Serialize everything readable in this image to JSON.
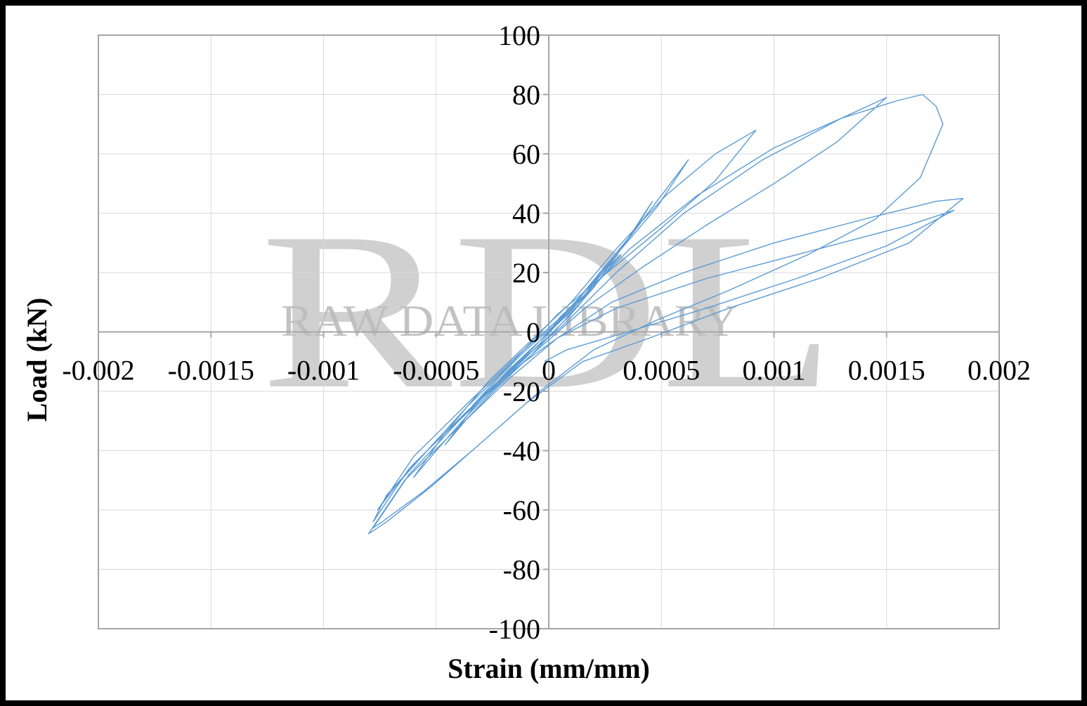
{
  "watermark": {
    "letters": "RDL",
    "text": "RAW DATA LIBRARY"
  },
  "chart_data": {
    "type": "line",
    "title": "",
    "xlabel": "Strain (mm/mm)",
    "ylabel": "Load (kN)",
    "xlim": [
      -0.002,
      0.002
    ],
    "ylim": [
      -100,
      100
    ],
    "xticks": [
      -0.002,
      -0.0015,
      -0.001,
      -0.0005,
      0,
      0.0005,
      0.001,
      0.0015,
      0.002
    ],
    "xtick_labels": [
      "-0.002",
      "-0.0015",
      "-0.001",
      "-0.0005",
      "0",
      "0.0005",
      "0.001",
      "0.0015",
      "0.002"
    ],
    "yticks": [
      -100,
      -80,
      -60,
      -40,
      -20,
      0,
      20,
      40,
      60,
      80,
      100
    ],
    "ytick_labels": [
      "-100",
      "-80",
      "-60",
      "-40",
      "-20",
      "0",
      "20",
      "40",
      "60",
      "80",
      "100"
    ],
    "grid": true,
    "legend": "none",
    "series_color": "#5b9bd5",
    "series": [
      {
        "x": [
          0,
          5e-05,
          0.00012,
          0.0002,
          0.00012,
          4e-05,
          -4e-05,
          -0.00012,
          -0.0002,
          -0.00012,
          -4e-05,
          4e-05,
          0.00014,
          0.00024,
          0.00032,
          0.00022,
          0.0001,
          -2e-05,
          -0.00014,
          -0.00026,
          -0.00034,
          -0.00022,
          -0.0001,
          2e-05,
          0.00014,
          0.00026,
          0.00038,
          0.00046,
          0.00034,
          0.0002,
          6e-05,
          -8e-05,
          -0.00022,
          -0.00036,
          -0.00046,
          -0.00034,
          -0.00018,
          -4e-05,
          0.0001,
          0.00024,
          0.0004,
          0.00054,
          0.00062,
          0.00048,
          0.0003,
          0.00012,
          -4e-05,
          -0.0002,
          -0.00036,
          -0.0005,
          -0.0006,
          -0.00046,
          -0.00026,
          -8e-05,
          0.0001,
          0.0003,
          0.00052,
          0.00074,
          0.00092,
          0.00074,
          0.0005,
          0.00026,
          4e-05,
          -0.00016,
          -0.00036,
          -0.00054,
          -0.00068,
          -0.00076,
          -0.0006,
          -0.00036,
          -0.00014,
          0.0001,
          0.00036,
          0.00066,
          0.001,
          0.0013,
          0.0015,
          0.00128,
          0.001,
          0.0007,
          0.00042,
          0.00016,
          -8e-05,
          -0.00032,
          -0.00054,
          -0.00072,
          -0.00078,
          -0.00062,
          -0.00038,
          -0.00016,
          6e-05,
          0.0003,
          0.0006,
          0.00095,
          0.0013,
          0.00155,
          0.00166,
          0.00172,
          0.00175,
          0.00165,
          0.00145,
          0.00115,
          0.0008,
          0.00048,
          0.0002,
          -4e-05,
          -0.00028,
          -0.00052,
          -0.00072,
          -0.0008,
          -0.00064,
          -0.0004,
          -0.00018,
          4e-05,
          0.00028,
          0.0006,
          0.001,
          0.0014,
          0.00172,
          0.00184,
          0.0016,
          0.0012,
          0.0008,
          0.00045,
          0.00015,
          -0.0001,
          -0.00034,
          -0.00056,
          -0.00074,
          -0.00078,
          -0.00062,
          -0.0004,
          -0.00018,
          4e-05,
          0.0003,
          0.0007,
          0.0012,
          0.0016,
          0.0018,
          0.0015,
          0.0011,
          0.0007,
          0.00035,
          8e-05,
          -2e-05
        ],
        "y": [
          0,
          5,
          10,
          15,
          9,
          3,
          -3,
          -9,
          -15,
          -10,
          -4,
          3,
          12,
          20,
          26,
          17,
          6,
          -3,
          -11,
          -19,
          -25,
          -15,
          -6,
          2,
          12,
          23,
          34,
          44,
          30,
          15,
          3,
          -8,
          -18,
          -29,
          -38,
          -26,
          -13,
          -3,
          7,
          20,
          36,
          50,
          58,
          42,
          26,
          10,
          -3,
          -16,
          -28,
          -40,
          -49,
          -34,
          -16,
          -3,
          10,
          28,
          46,
          60,
          68,
          51,
          35,
          20,
          6,
          -10,
          -25,
          -40,
          -52,
          -60,
          -42,
          -24,
          -8,
          8,
          28,
          46,
          62,
          72,
          79,
          64,
          50,
          36,
          22,
          8,
          -8,
          -24,
          -40,
          -55,
          -64,
          -46,
          -28,
          -12,
          2,
          20,
          40,
          58,
          72,
          78,
          80,
          76,
          70,
          52,
          38,
          26,
          14,
          4,
          -6,
          -20,
          -36,
          -52,
          -64,
          -68,
          -50,
          -32,
          -16,
          -2,
          10,
          20,
          30,
          38,
          44,
          45,
          30,
          18,
          8,
          -2,
          -10,
          -24,
          -40,
          -54,
          -64,
          -66,
          -48,
          -30,
          -14,
          -2,
          8,
          18,
          28,
          36,
          41,
          29,
          18,
          8,
          0,
          -6,
          -10
        ]
      }
    ]
  }
}
